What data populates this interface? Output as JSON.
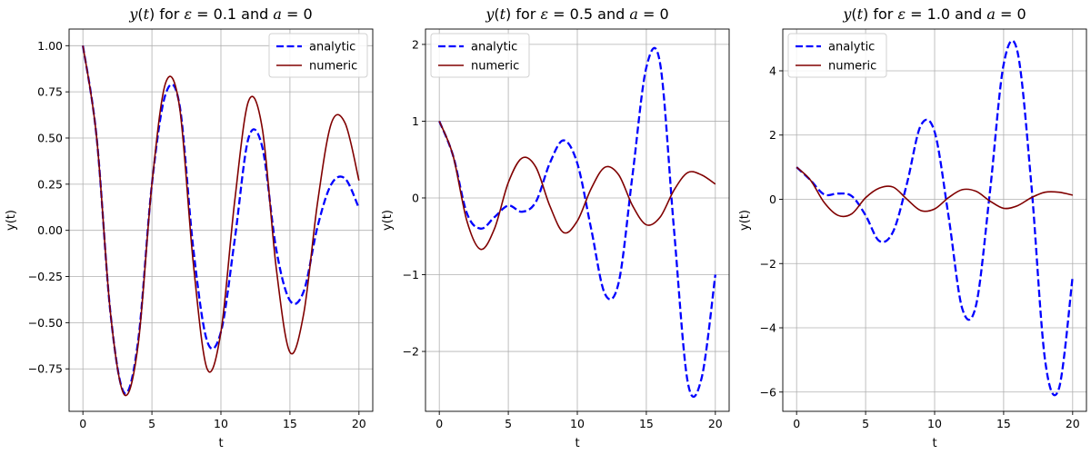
{
  "chart_data": [
    {
      "type": "line",
      "title": "y(t) for ε = 0.1 and a = 0",
      "title_parts": {
        "lead": "y",
        "open": "(",
        "var": "t",
        "close": ")",
        "mid": " for ",
        "sym": "ε",
        "rest": " = 0.1 and ",
        "sym2": "a",
        "tail": " = 0"
      },
      "xlabel": "t",
      "ylabel": "y(t)",
      "xlim": [
        -1,
        21
      ],
      "ylim": [
        -0.98,
        1.09
      ],
      "xticks": [
        0,
        5,
        10,
        15,
        20
      ],
      "yticks": [
        -0.75,
        -0.5,
        -0.25,
        0.0,
        0.25,
        0.5,
        0.75,
        1.0
      ],
      "ytick_labels": [
        "−0.75",
        "−0.50",
        "−0.25",
        "0.00",
        "0.25",
        "0.50",
        "0.75",
        "1.00"
      ],
      "grid": true,
      "legend_position": "top-right",
      "series": [
        {
          "name": "analytic",
          "color": "#0000ff",
          "style": "dashed",
          "x": [
            0,
            1,
            2,
            3,
            4,
            5,
            6,
            7,
            8,
            9,
            10,
            11,
            12,
            13,
            14,
            15,
            16,
            17,
            18,
            19,
            20
          ],
          "y": [
            1.0,
            0.5,
            -0.45,
            -0.88,
            -0.6,
            0.25,
            0.74,
            0.68,
            -0.1,
            -0.6,
            -0.55,
            -0.05,
            0.5,
            0.45,
            -0.1,
            -0.38,
            -0.33,
            0.02,
            0.25,
            0.28,
            0.12
          ]
        },
        {
          "name": "numeric",
          "color": "#800000",
          "style": "solid",
          "x": [
            0,
            1,
            2,
            3,
            4,
            5,
            6,
            7,
            8,
            9,
            10,
            11,
            12,
            13,
            14,
            15,
            16,
            17,
            18,
            19,
            20
          ],
          "y": [
            1.0,
            0.5,
            -0.45,
            -0.89,
            -0.62,
            0.25,
            0.8,
            0.67,
            -0.18,
            -0.75,
            -0.55,
            0.16,
            0.7,
            0.55,
            -0.2,
            -0.66,
            -0.45,
            0.15,
            0.58,
            0.58,
            0.27
          ]
        }
      ]
    },
    {
      "type": "line",
      "title": "y(t) for ε = 0.5 and a = 0",
      "title_parts": {
        "lead": "y",
        "open": "(",
        "var": "t",
        "close": ")",
        "mid": " for ",
        "sym": "ε",
        "rest": " = 0.5 and ",
        "sym2": "a",
        "tail": " = 0"
      },
      "xlabel": "t",
      "ylabel": "y(t)",
      "xlim": [
        -1,
        21
      ],
      "ylim": [
        -2.78,
        2.2
      ],
      "xticks": [
        0,
        5,
        10,
        15,
        20
      ],
      "yticks": [
        -2,
        -1,
        0,
        1,
        2
      ],
      "ytick_labels": [
        "−2",
        "−1",
        "0",
        "1",
        "2"
      ],
      "grid": true,
      "legend_position": "top-left",
      "series": [
        {
          "name": "analytic",
          "color": "#0000ff",
          "style": "dashed",
          "x": [
            0,
            1,
            2,
            3,
            4,
            5,
            6,
            7,
            8,
            9,
            10,
            11,
            12,
            13,
            14,
            15,
            16,
            17,
            18,
            19,
            20
          ],
          "y": [
            1.0,
            0.55,
            -0.2,
            -0.4,
            -0.25,
            -0.1,
            -0.18,
            -0.05,
            0.45,
            0.75,
            0.45,
            -0.4,
            -1.25,
            -1.1,
            0.3,
            1.7,
            1.75,
            -0.4,
            -2.4,
            -2.35,
            -1.0
          ]
        },
        {
          "name": "numeric",
          "color": "#800000",
          "style": "solid",
          "x": [
            0,
            1,
            2,
            3,
            4,
            5,
            6,
            7,
            8,
            9,
            10,
            11,
            12,
            13,
            14,
            15,
            16,
            17,
            18,
            19,
            20
          ],
          "y": [
            1.0,
            0.55,
            -0.3,
            -0.67,
            -0.4,
            0.2,
            0.52,
            0.4,
            -0.1,
            -0.45,
            -0.3,
            0.12,
            0.4,
            0.3,
            -0.1,
            -0.35,
            -0.25,
            0.1,
            0.33,
            0.3,
            0.18
          ]
        }
      ]
    },
    {
      "type": "line",
      "title": "y(t) for ε = 1.0 and a = 0",
      "title_parts": {
        "lead": "y",
        "open": "(",
        "var": "t",
        "close": ")",
        "mid": " for ",
        "sym": "ε",
        "rest": " = 1.0 and ",
        "sym2": "a",
        "tail": " = 0"
      },
      "xlabel": "t",
      "ylabel": "y(t)",
      "xlim": [
        -1,
        21
      ],
      "ylim": [
        -6.6,
        5.3
      ],
      "xticks": [
        0,
        5,
        10,
        15,
        20
      ],
      "yticks": [
        -6,
        -4,
        -2,
        0,
        2,
        4
      ],
      "ytick_labels": [
        "−6",
        "−4",
        "−2",
        "0",
        "2",
        "4"
      ],
      "grid": true,
      "legend_position": "top-left",
      "series": [
        {
          "name": "analytic",
          "color": "#0000ff",
          "style": "dashed",
          "x": [
            0,
            1,
            2,
            3,
            4,
            5,
            6,
            7,
            8,
            9,
            10,
            11,
            12,
            13,
            14,
            15,
            16,
            17,
            18,
            19,
            20
          ],
          "y": [
            1.0,
            0.6,
            0.15,
            0.18,
            0.1,
            -0.5,
            -1.3,
            -1.0,
            0.5,
            2.3,
            2.1,
            -0.5,
            -3.4,
            -3.3,
            0.2,
            4.2,
            4.6,
            0.5,
            -5.0,
            -5.9,
            -2.4
          ]
        },
        {
          "name": "numeric",
          "color": "#800000",
          "style": "solid",
          "x": [
            0,
            1,
            2,
            3,
            4,
            5,
            6,
            7,
            8,
            9,
            10,
            11,
            12,
            13,
            14,
            15,
            16,
            17,
            18,
            19,
            20
          ],
          "y": [
            1.0,
            0.6,
            -0.1,
            -0.5,
            -0.45,
            0.05,
            0.35,
            0.38,
            0.0,
            -0.35,
            -0.3,
            0.05,
            0.3,
            0.25,
            -0.05,
            -0.28,
            -0.2,
            0.05,
            0.22,
            0.22,
            0.13
          ]
        }
      ]
    }
  ]
}
